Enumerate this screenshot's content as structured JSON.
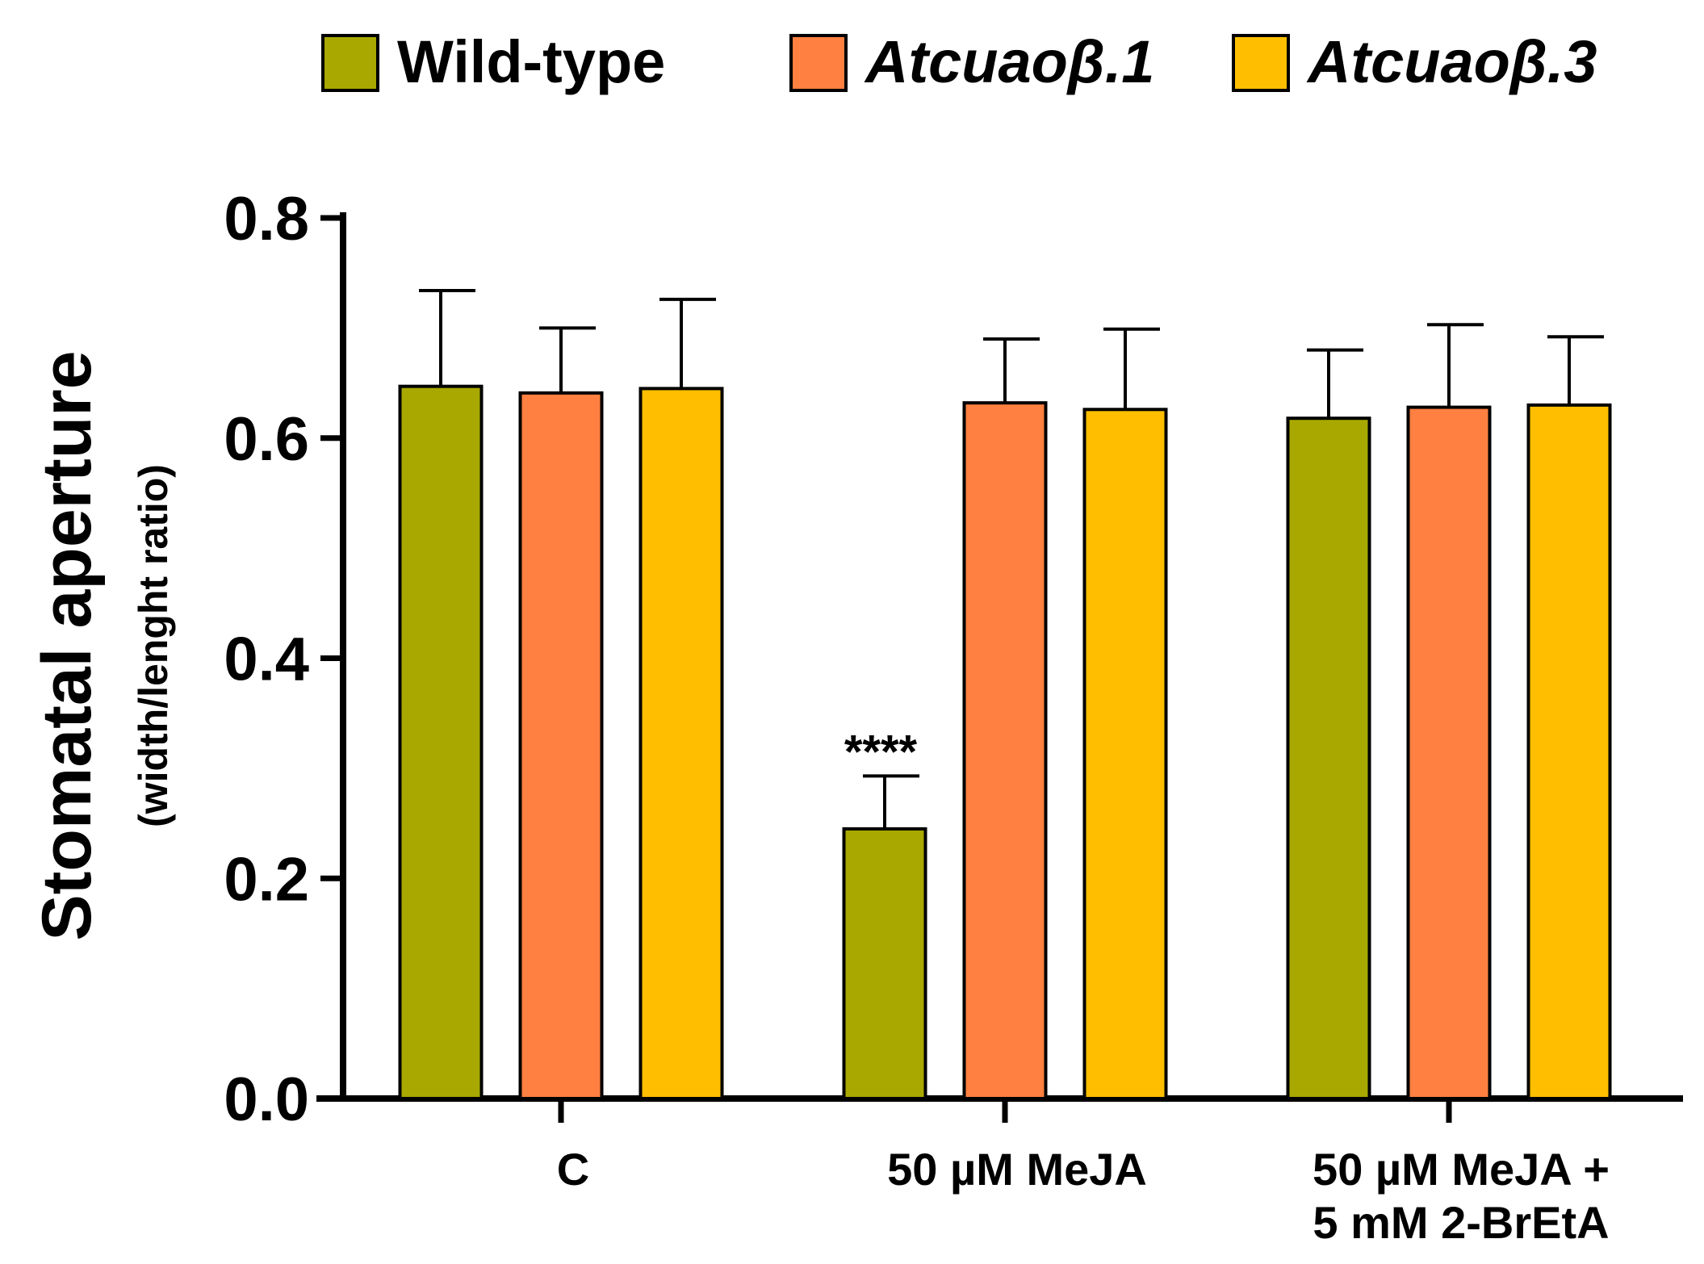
{
  "chart_data": {
    "type": "bar",
    "title": "",
    "ylabel": "Stomatal aperture",
    "ylabel_sub": "(width/lenght ratio)",
    "xlabel": "",
    "ylim": [
      0,
      0.8
    ],
    "yticks": [
      "0.0",
      "0.2",
      "0.4",
      "0.6",
      "0.8"
    ],
    "ytick_values": [
      0,
      0.2,
      0.4,
      0.6,
      0.8
    ],
    "categories": [
      [
        "C"
      ],
      [
        "50 µM MeJA"
      ],
      [
        "50 µM MeJA +",
        "5 mM 2-BrEtA"
      ]
    ],
    "series": [
      {
        "name": "Wild-type",
        "italic": false,
        "color": "#a8a800",
        "values": [
          0.647,
          0.245,
          0.618
        ],
        "errors": [
          0.087,
          0.048,
          0.062
        ]
      },
      {
        "name": "Atcuaoβ.1",
        "italic": true,
        "color": "#ff8040",
        "values": [
          0.641,
          0.632,
          0.628
        ],
        "errors": [
          0.059,
          0.058,
          0.075
        ]
      },
      {
        "name": "Atcuaoβ.3",
        "italic": true,
        "color": "#ffbf00",
        "values": [
          0.645,
          0.626,
          0.63
        ],
        "errors": [
          0.081,
          0.073,
          0.062
        ]
      }
    ],
    "annotations": [
      {
        "text": "****",
        "category_index": 1,
        "series_index": 0
      }
    ],
    "legend_position": "top",
    "grid": false
  }
}
